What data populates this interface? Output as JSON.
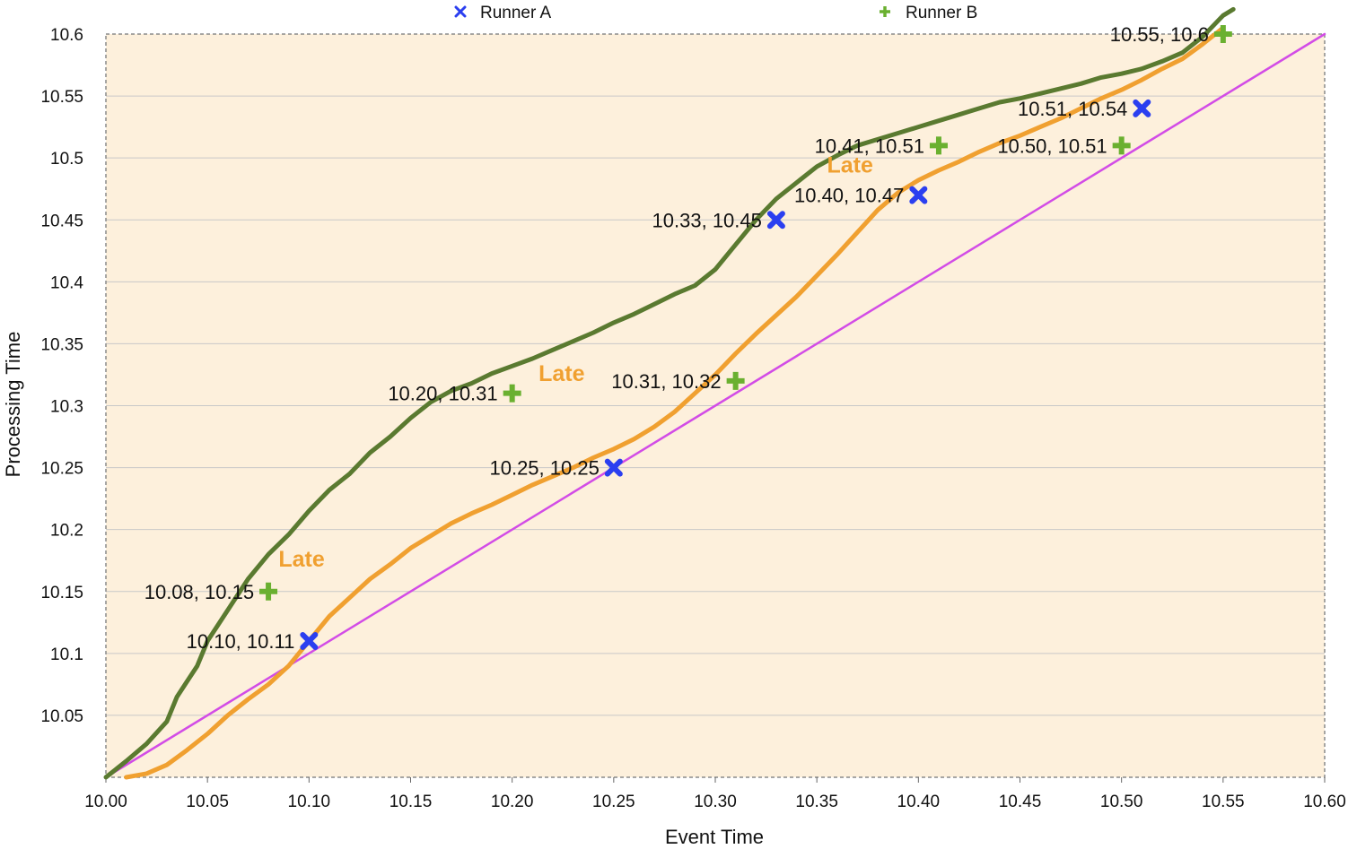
{
  "chart_data": {
    "type": "scatter",
    "xlabel": "Event Time",
    "ylabel": "Processing Time",
    "xlim": [
      10.0,
      10.6
    ],
    "ylim": [
      10.0,
      10.6
    ],
    "x_ticks": [
      "10.00",
      "10.05",
      "10.10",
      "10.15",
      "10.20",
      "10.25",
      "10.30",
      "10.35",
      "10.40",
      "10.45",
      "10.50",
      "10.55",
      "10.60"
    ],
    "y_ticks": [
      "10.05",
      "10.1",
      "10.15",
      "10.2",
      "10.25",
      "10.3",
      "10.35",
      "10.4",
      "10.45",
      "10.5",
      "10.55",
      "10.6"
    ],
    "x_tick_values": [
      10.0,
      10.05,
      10.1,
      10.15,
      10.2,
      10.25,
      10.3,
      10.35,
      10.4,
      10.45,
      10.5,
      10.55,
      10.6
    ],
    "y_tick_values": [
      10.05,
      10.1,
      10.15,
      10.2,
      10.25,
      10.3,
      10.35,
      10.4,
      10.45,
      10.5,
      10.55,
      10.6
    ],
    "grid": true,
    "legend_position": "top",
    "plot_background": "#fdf0dc",
    "series": [
      {
        "name": "Runner A",
        "marker": "x",
        "color": "#2b3ff0",
        "points": [
          {
            "x": 10.1,
            "y": 10.11,
            "label": "10.10, 10.11"
          },
          {
            "x": 10.25,
            "y": 10.25,
            "label": "10.25, 10.25"
          },
          {
            "x": 10.33,
            "y": 10.45,
            "label": "10.33, 10.45"
          },
          {
            "x": 10.4,
            "y": 10.47,
            "label": "10.40, 10.47"
          },
          {
            "x": 10.51,
            "y": 10.54,
            "label": "10.51, 10.54"
          }
        ]
      },
      {
        "name": "Runner B",
        "marker": "plus",
        "color": "#6ab030",
        "points": [
          {
            "x": 10.08,
            "y": 10.15,
            "label": "10.08, 10.15"
          },
          {
            "x": 10.2,
            "y": 10.31,
            "label": "10.20, 10.31"
          },
          {
            "x": 10.31,
            "y": 10.32,
            "label": "10.31, 10.32"
          },
          {
            "x": 10.41,
            "y": 10.51,
            "label": "10.41, 10.51"
          },
          {
            "x": 10.5,
            "y": 10.51,
            "label": "10.50, 10.51"
          },
          {
            "x": 10.55,
            "y": 10.6,
            "label": "10.55, 10.6"
          }
        ]
      }
    ],
    "lines": [
      {
        "color": "#d24ce6",
        "points": [
          [
            10.0,
            10.0
          ],
          [
            10.6,
            10.6
          ]
        ]
      },
      {
        "color": "#5a7a30",
        "points": [
          [
            10.0,
            10.0
          ],
          [
            10.01,
            10.013
          ],
          [
            10.02,
            10.027
          ],
          [
            10.03,
            10.045
          ],
          [
            10.035,
            10.065
          ],
          [
            10.045,
            10.09
          ],
          [
            10.05,
            10.11
          ],
          [
            10.06,
            10.135
          ],
          [
            10.07,
            10.16
          ],
          [
            10.08,
            10.18
          ],
          [
            10.09,
            10.196
          ],
          [
            10.1,
            10.215
          ],
          [
            10.11,
            10.232
          ],
          [
            10.12,
            10.245
          ],
          [
            10.13,
            10.262
          ],
          [
            10.14,
            10.275
          ],
          [
            10.15,
            10.29
          ],
          [
            10.16,
            10.303
          ],
          [
            10.17,
            10.312
          ],
          [
            10.18,
            10.318
          ],
          [
            10.19,
            10.326
          ],
          [
            10.2,
            10.332
          ],
          [
            10.21,
            10.338
          ],
          [
            10.22,
            10.345
          ],
          [
            10.23,
            10.352
          ],
          [
            10.24,
            10.359
          ],
          [
            10.25,
            10.367
          ],
          [
            10.26,
            10.374
          ],
          [
            10.27,
            10.382
          ],
          [
            10.28,
            10.39
          ],
          [
            10.29,
            10.397
          ],
          [
            10.3,
            10.41
          ],
          [
            10.31,
            10.43
          ],
          [
            10.32,
            10.45
          ],
          [
            10.33,
            10.467
          ],
          [
            10.34,
            10.48
          ],
          [
            10.35,
            10.493
          ],
          [
            10.36,
            10.502
          ],
          [
            10.37,
            10.51
          ],
          [
            10.38,
            10.515
          ],
          [
            10.39,
            10.52
          ],
          [
            10.4,
            10.525
          ],
          [
            10.41,
            10.53
          ],
          [
            10.42,
            10.535
          ],
          [
            10.43,
            10.54
          ],
          [
            10.44,
            10.545
          ],
          [
            10.45,
            10.548
          ],
          [
            10.46,
            10.552
          ],
          [
            10.47,
            10.556
          ],
          [
            10.48,
            10.56
          ],
          [
            10.49,
            10.565
          ],
          [
            10.5,
            10.568
          ],
          [
            10.51,
            10.572
          ],
          [
            10.52,
            10.578
          ],
          [
            10.53,
            10.585
          ],
          [
            10.54,
            10.598
          ],
          [
            10.55,
            10.615
          ],
          [
            10.555,
            10.62
          ]
        ]
      },
      {
        "color": "#f0a030",
        "points": [
          [
            10.01,
            10.0
          ],
          [
            10.02,
            10.003
          ],
          [
            10.03,
            10.01
          ],
          [
            10.04,
            10.022
          ],
          [
            10.05,
            10.035
          ],
          [
            10.06,
            10.05
          ],
          [
            10.07,
            10.063
          ],
          [
            10.08,
            10.075
          ],
          [
            10.09,
            10.09
          ],
          [
            10.1,
            10.11
          ],
          [
            10.11,
            10.13
          ],
          [
            10.12,
            10.145
          ],
          [
            10.13,
            10.16
          ],
          [
            10.14,
            10.172
          ],
          [
            10.15,
            10.185
          ],
          [
            10.16,
            10.195
          ],
          [
            10.17,
            10.205
          ],
          [
            10.18,
            10.213
          ],
          [
            10.19,
            10.22
          ],
          [
            10.2,
            10.228
          ],
          [
            10.21,
            10.236
          ],
          [
            10.22,
            10.243
          ],
          [
            10.23,
            10.25
          ],
          [
            10.24,
            10.258
          ],
          [
            10.25,
            10.265
          ],
          [
            10.26,
            10.273
          ],
          [
            10.27,
            10.283
          ],
          [
            10.28,
            10.295
          ],
          [
            10.29,
            10.31
          ],
          [
            10.3,
            10.325
          ],
          [
            10.31,
            10.342
          ],
          [
            10.32,
            10.358
          ],
          [
            10.33,
            10.373
          ],
          [
            10.34,
            10.388
          ],
          [
            10.35,
            10.405
          ],
          [
            10.36,
            10.422
          ],
          [
            10.37,
            10.44
          ],
          [
            10.38,
            10.458
          ],
          [
            10.39,
            10.472
          ],
          [
            10.4,
            10.482
          ],
          [
            10.41,
            10.49
          ],
          [
            10.42,
            10.497
          ],
          [
            10.43,
            10.505
          ],
          [
            10.44,
            10.512
          ],
          [
            10.45,
            10.518
          ],
          [
            10.46,
            10.525
          ],
          [
            10.47,
            10.532
          ],
          [
            10.48,
            10.54
          ],
          [
            10.49,
            10.548
          ],
          [
            10.5,
            10.555
          ],
          [
            10.51,
            10.563
          ],
          [
            10.52,
            10.572
          ],
          [
            10.53,
            10.58
          ],
          [
            10.54,
            10.592
          ],
          [
            10.55,
            10.605
          ]
        ]
      }
    ],
    "annotations": [
      {
        "text": "Late",
        "x": 10.085,
        "y": 10.17,
        "color": "#f0a030"
      },
      {
        "text": "Late",
        "x": 10.213,
        "y": 10.32,
        "color": "#f0a030"
      },
      {
        "text": "Late",
        "x": 10.355,
        "y": 10.488,
        "color": "#f0a030"
      }
    ]
  }
}
